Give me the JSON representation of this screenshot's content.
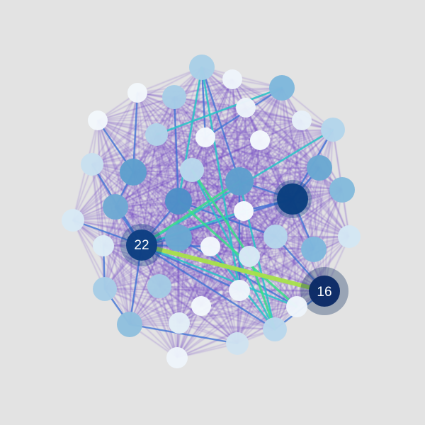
{
  "colors": {
    "background": "#e3e3e3",
    "mesh_edge": "#6a3fc0",
    "mid_edge": "#3b74d6",
    "cyan_edge": "#27c7c7",
    "green_edge": "#37e08a",
    "lime_edge": "#a6e04a",
    "halo": "#0d2d5e"
  },
  "graph": {
    "labeled_nodes": [
      {
        "id": "22",
        "label": "22",
        "color": "#0d3f82"
      },
      {
        "id": "16",
        "label": "16",
        "color": "#0b2a66"
      }
    ]
  }
}
